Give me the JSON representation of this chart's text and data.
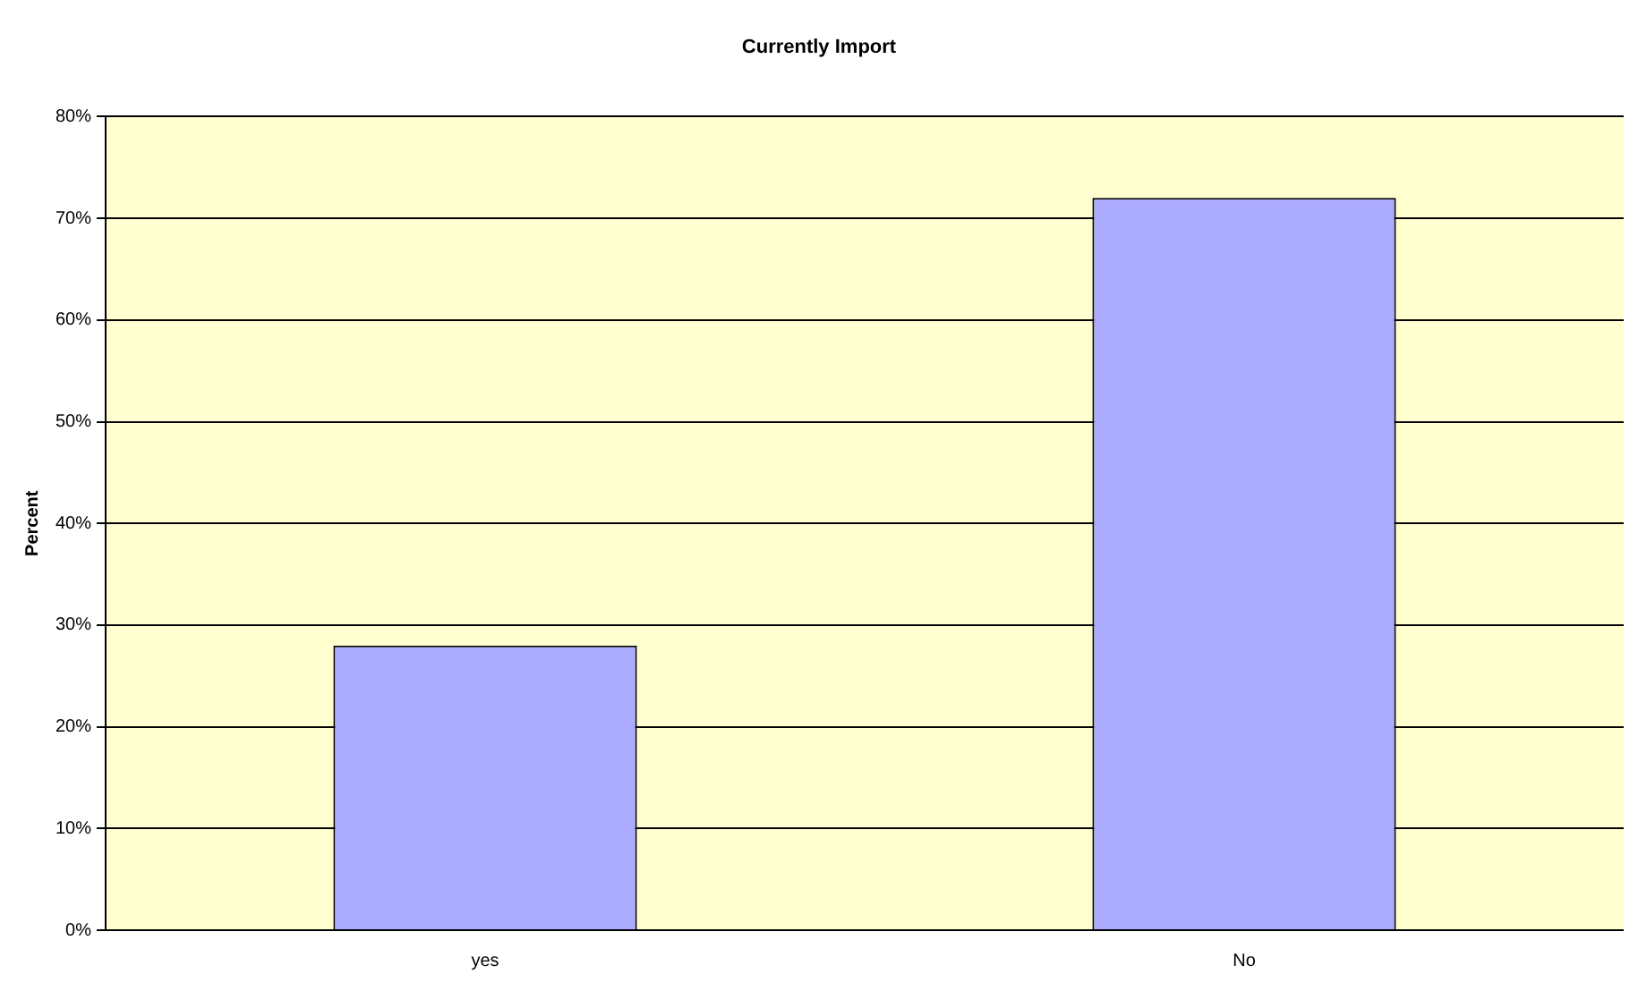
{
  "chart_data": {
    "type": "bar",
    "title": "Currently Import",
    "ylabel": "Percent",
    "categories": [
      "yes",
      "No"
    ],
    "series": [
      {
        "color": "#aaaaff",
        "values": [
          28,
          72
        ]
      }
    ],
    "ylim": [
      0,
      80
    ],
    "yticks": [
      {
        "value": 0,
        "label": "0%"
      },
      {
        "value": 10,
        "label": "10%"
      },
      {
        "value": 20,
        "label": "20%"
      },
      {
        "value": 30,
        "label": "30%"
      },
      {
        "value": 40,
        "label": "40%"
      },
      {
        "value": 50,
        "label": "50%"
      },
      {
        "value": 60,
        "label": "60%"
      },
      {
        "value": 70,
        "label": "70%"
      },
      {
        "value": 80,
        "label": "80%"
      }
    ],
    "grid": "y",
    "legend": false
  }
}
